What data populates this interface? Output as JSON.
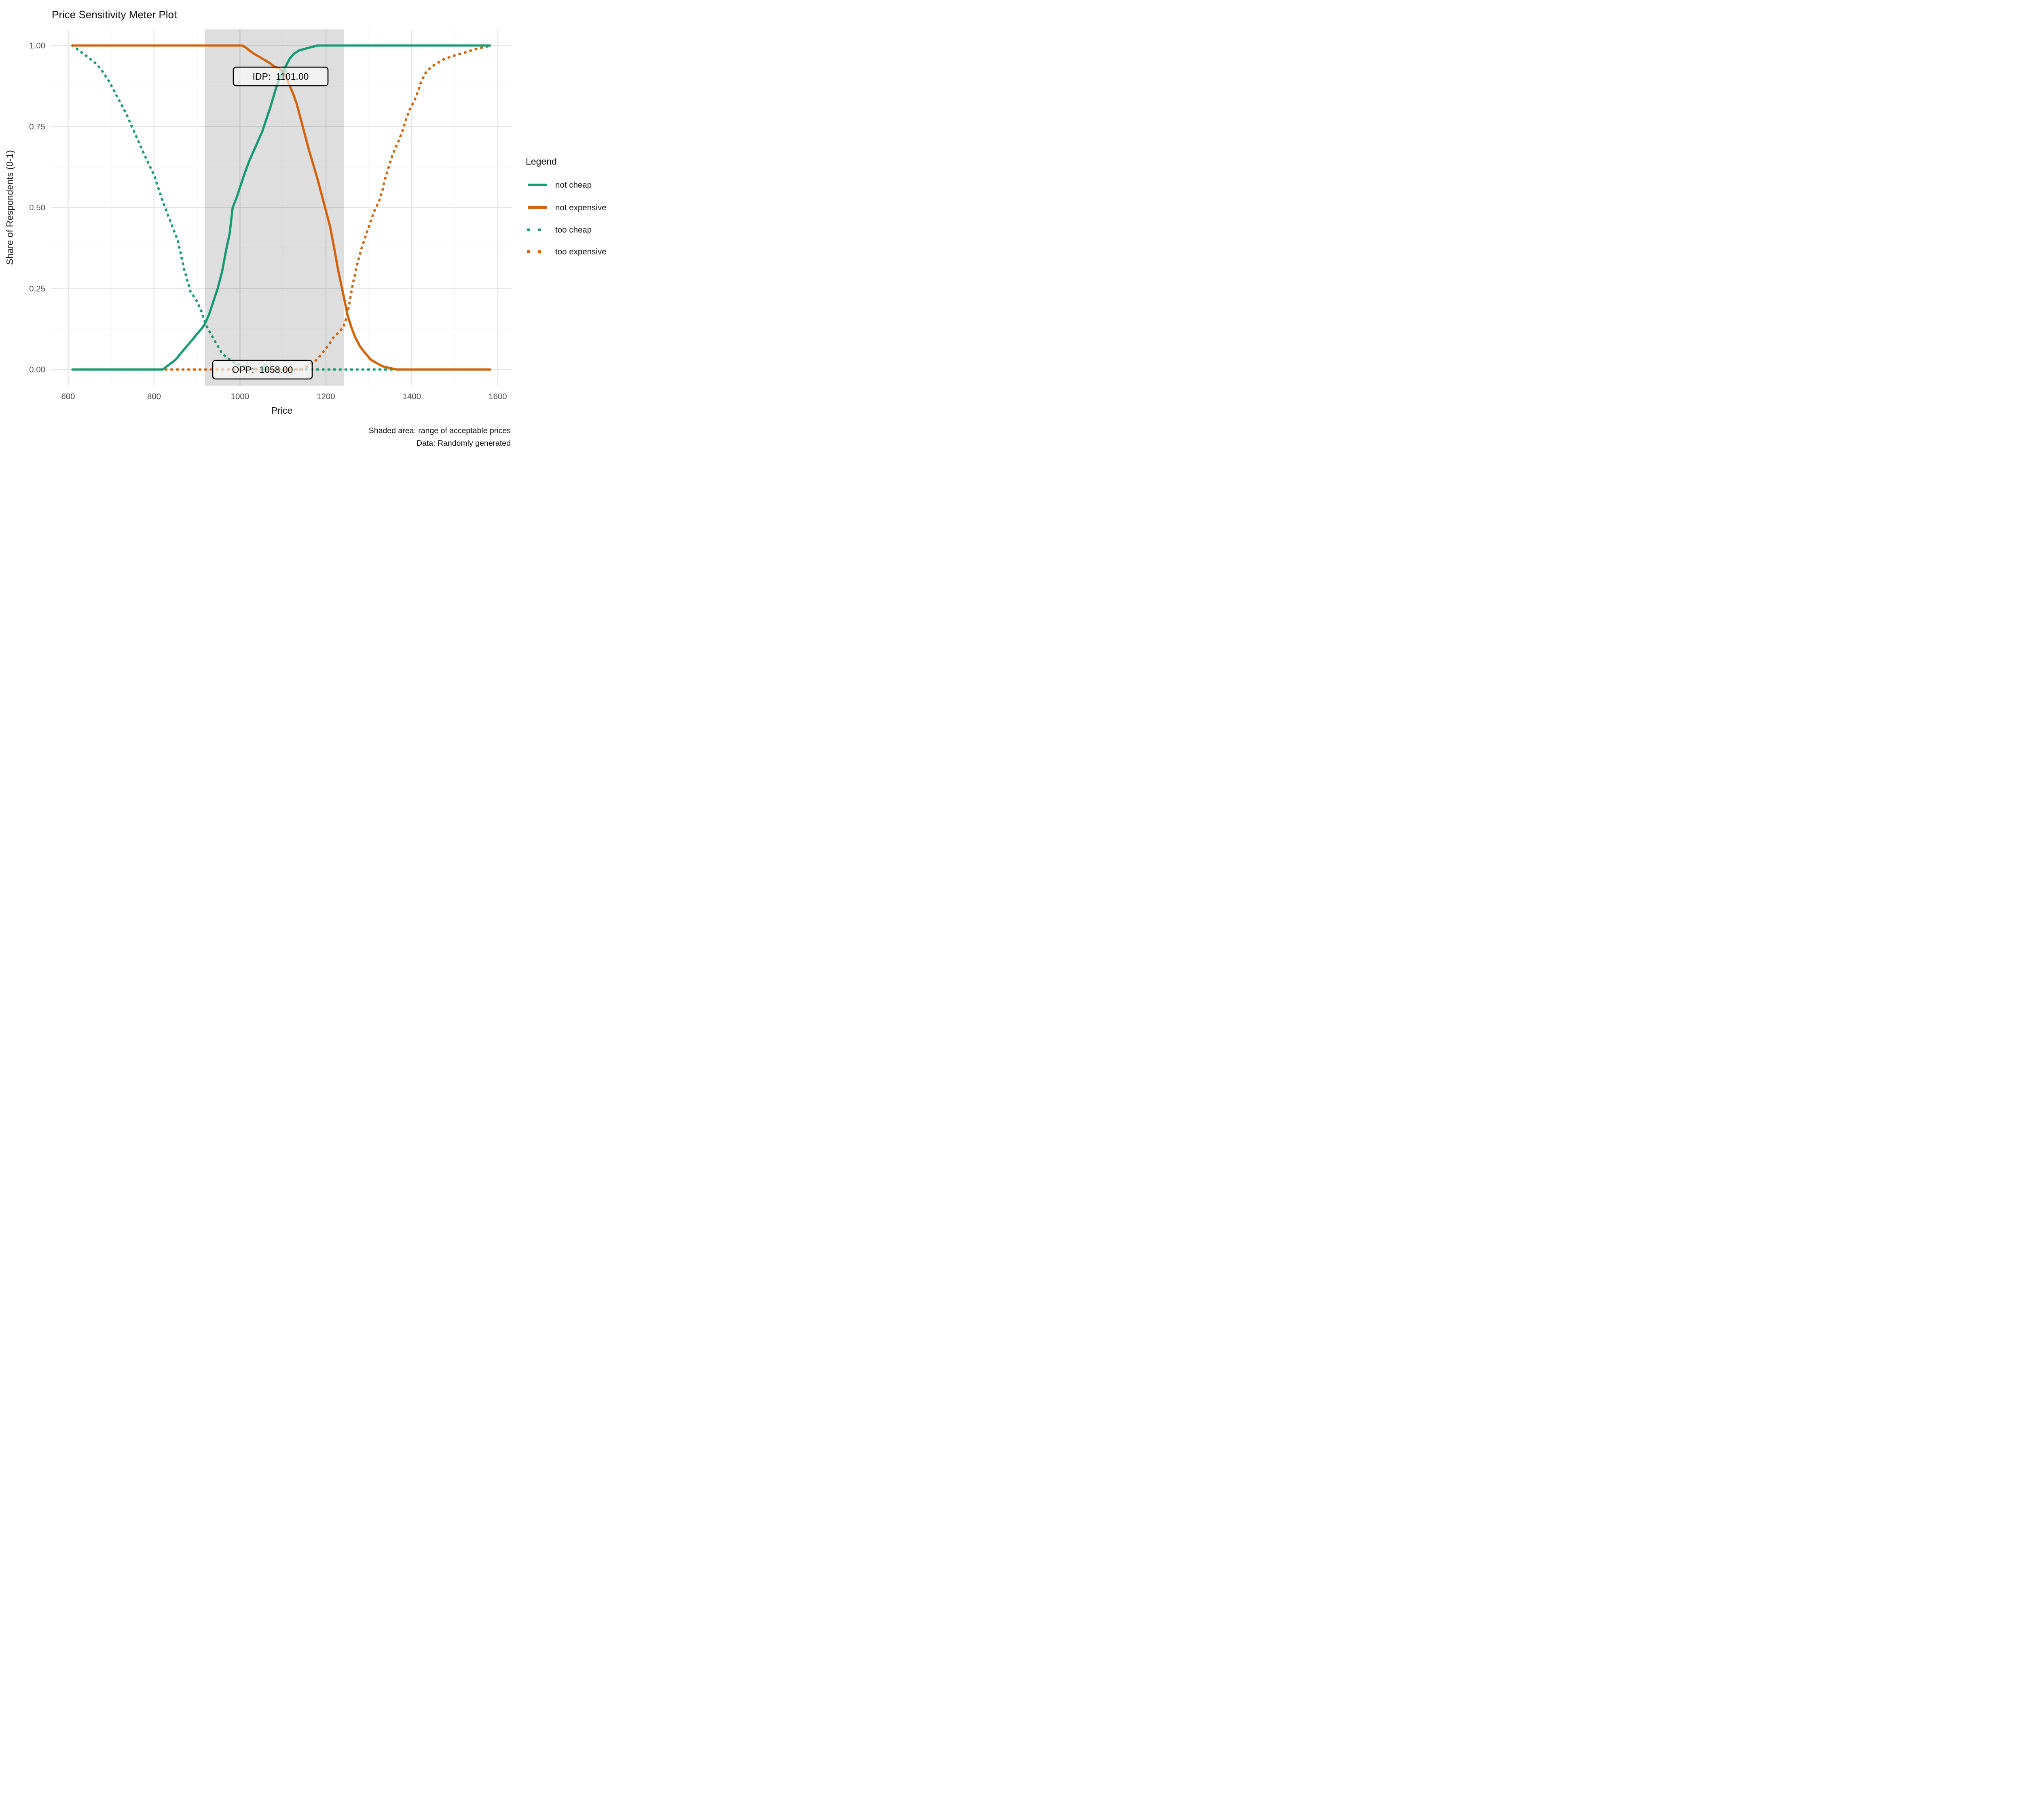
{
  "title": "Price Sensitivity Meter Plot",
  "axes": {
    "x": {
      "label": "Price",
      "tick_labels": [
        "600",
        "800",
        "1000",
        "1200",
        "1400",
        "1600"
      ]
    },
    "y": {
      "label": "Share of Respondents (0-1)",
      "tick_labels": [
        "0.00",
        "0.25",
        "0.50",
        "0.75",
        "1.00"
      ]
    }
  },
  "legend": {
    "title": "Legend",
    "items": [
      {
        "label": "not cheap",
        "color": "#169b72",
        "style": "solid"
      },
      {
        "label": "not expensive",
        "color": "#d4620a",
        "style": "solid"
      },
      {
        "label": "too cheap",
        "color": "#169b72",
        "style": "dotted"
      },
      {
        "label": "too expensive",
        "color": "#d4620a",
        "style": "dotted"
      }
    ]
  },
  "caption": {
    "line1": "Shaded area: range of acceptable prices",
    "line2": "Data: Randomly generated"
  },
  "colors": {
    "green": "#169b72",
    "orange": "#d4620a",
    "band": "rgba(0,0,0,0.13)",
    "grid_major": "#e6e6e6",
    "grid_minor": "#f2f2f2",
    "annotation_fill": "rgba(255,255,255,0.62)",
    "annotation_border": "#000000"
  },
  "chart_data": {
    "type": "line",
    "title": "Price Sensitivity Meter Plot",
    "xlabel": "Price",
    "ylabel": "Share of Respondents (0-1)",
    "xlim": [
      561,
      1634
    ],
    "ylim": [
      -0.05,
      1.05
    ],
    "x_ticks": [
      600,
      800,
      1000,
      1200,
      1400,
      1600
    ],
    "y_ticks": [
      {
        "value": 0.0,
        "label": "0.00"
      },
      {
        "value": 0.25,
        "label": "0.25"
      },
      {
        "value": 0.5,
        "label": "0.50"
      },
      {
        "value": 0.75,
        "label": "0.75"
      },
      {
        "value": 1.0,
        "label": "1.00"
      }
    ],
    "grid": "major+minor",
    "legend_position": "right",
    "series": [
      {
        "id": "too_cheap",
        "name": "too cheap",
        "color": "#169b72",
        "style": "dotted",
        "dash_offset": 0,
        "points": [
          [
            610,
            1.0
          ],
          [
            640,
            0.97
          ],
          [
            660,
            0.95
          ],
          [
            675,
            0.93
          ],
          [
            695,
            0.89
          ],
          [
            715,
            0.84
          ],
          [
            735,
            0.79
          ],
          [
            755,
            0.73
          ],
          [
            775,
            0.67
          ],
          [
            800,
            0.6
          ],
          [
            820,
            0.52
          ],
          [
            840,
            0.45
          ],
          [
            855,
            0.4
          ],
          [
            870,
            0.31
          ],
          [
            885,
            0.24
          ],
          [
            900,
            0.21
          ],
          [
            910,
            0.18
          ],
          [
            920,
            0.14
          ],
          [
            932,
            0.11
          ],
          [
            945,
            0.08
          ],
          [
            958,
            0.05
          ],
          [
            972,
            0.035
          ],
          [
            988,
            0.02
          ],
          [
            1005,
            0.012
          ],
          [
            1025,
            0.005
          ],
          [
            1045,
            0.0
          ],
          [
            1370,
            0.0
          ]
        ]
      },
      {
        "id": "too_expensive",
        "name": "too expensive",
        "color": "#d4620a",
        "style": "dotted",
        "dash_offset": 7,
        "points": [
          [
            610,
            0.0
          ],
          [
            1145,
            0.0
          ],
          [
            1158,
            0.01
          ],
          [
            1170,
            0.02
          ],
          [
            1182,
            0.035
          ],
          [
            1194,
            0.055
          ],
          [
            1206,
            0.075
          ],
          [
            1218,
            0.1
          ],
          [
            1230,
            0.115
          ],
          [
            1240,
            0.13
          ],
          [
            1248,
            0.16
          ],
          [
            1254,
            0.2
          ],
          [
            1262,
            0.26
          ],
          [
            1272,
            0.32
          ],
          [
            1282,
            0.37
          ],
          [
            1292,
            0.41
          ],
          [
            1302,
            0.45
          ],
          [
            1313,
            0.49
          ],
          [
            1324,
            0.52
          ],
          [
            1331,
            0.55
          ],
          [
            1338,
            0.59
          ],
          [
            1345,
            0.62
          ],
          [
            1352,
            0.65
          ],
          [
            1360,
            0.68
          ],
          [
            1371,
            0.71
          ],
          [
            1379,
            0.74
          ],
          [
            1386,
            0.77
          ],
          [
            1394,
            0.8
          ],
          [
            1406,
            0.83
          ],
          [
            1415,
            0.86
          ],
          [
            1422,
            0.89
          ],
          [
            1434,
            0.92
          ],
          [
            1452,
            0.94
          ],
          [
            1474,
            0.957
          ],
          [
            1496,
            0.968
          ],
          [
            1520,
            0.977
          ],
          [
            1546,
            0.988
          ],
          [
            1562,
            0.993
          ],
          [
            1576,
            0.997
          ],
          [
            1583,
            1.0
          ]
        ]
      },
      {
        "id": "not_cheap",
        "name": "not cheap",
        "color": "#169b72",
        "style": "solid",
        "dash_offset": 0,
        "points": [
          [
            610,
            0.0
          ],
          [
            820,
            0.0
          ],
          [
            835,
            0.015
          ],
          [
            850,
            0.03
          ],
          [
            862,
            0.05
          ],
          [
            875,
            0.07
          ],
          [
            888,
            0.09
          ],
          [
            900,
            0.11
          ],
          [
            910,
            0.125
          ],
          [
            918,
            0.14
          ],
          [
            928,
            0.17
          ],
          [
            938,
            0.21
          ],
          [
            948,
            0.25
          ],
          [
            958,
            0.3
          ],
          [
            968,
            0.37
          ],
          [
            976,
            0.42
          ],
          [
            983,
            0.5
          ],
          [
            992,
            0.53
          ],
          [
            1002,
            0.57
          ],
          [
            1012,
            0.61
          ],
          [
            1022,
            0.645
          ],
          [
            1032,
            0.675
          ],
          [
            1042,
            0.705
          ],
          [
            1052,
            0.735
          ],
          [
            1062,
            0.775
          ],
          [
            1072,
            0.815
          ],
          [
            1082,
            0.86
          ],
          [
            1092,
            0.9
          ],
          [
            1101,
            0.92
          ],
          [
            1108,
            0.94
          ],
          [
            1116,
            0.96
          ],
          [
            1126,
            0.975
          ],
          [
            1138,
            0.985
          ],
          [
            1152,
            0.99
          ],
          [
            1166,
            0.995
          ],
          [
            1180,
            1.0
          ],
          [
            1582,
            1.0
          ]
        ]
      },
      {
        "id": "not_expensive",
        "name": "not expensive",
        "color": "#d4620a",
        "style": "solid",
        "dash_offset": 0,
        "points": [
          [
            610,
            1.0
          ],
          [
            1005,
            1.0
          ],
          [
            1012,
            0.995
          ],
          [
            1022,
            0.985
          ],
          [
            1032,
            0.975
          ],
          [
            1045,
            0.965
          ],
          [
            1058,
            0.955
          ],
          [
            1070,
            0.945
          ],
          [
            1080,
            0.935
          ],
          [
            1090,
            0.93
          ],
          [
            1101,
            0.92
          ],
          [
            1108,
            0.9
          ],
          [
            1116,
            0.875
          ],
          [
            1124,
            0.85
          ],
          [
            1132,
            0.82
          ],
          [
            1140,
            0.78
          ],
          [
            1150,
            0.73
          ],
          [
            1160,
            0.68
          ],
          [
            1170,
            0.635
          ],
          [
            1180,
            0.59
          ],
          [
            1190,
            0.54
          ],
          [
            1200,
            0.49
          ],
          [
            1210,
            0.44
          ],
          [
            1220,
            0.37
          ],
          [
            1228,
            0.31
          ],
          [
            1236,
            0.26
          ],
          [
            1244,
            0.21
          ],
          [
            1250,
            0.17
          ],
          [
            1258,
            0.135
          ],
          [
            1268,
            0.1
          ],
          [
            1280,
            0.07
          ],
          [
            1292,
            0.05
          ],
          [
            1305,
            0.03
          ],
          [
            1318,
            0.02
          ],
          [
            1332,
            0.01
          ],
          [
            1348,
            0.005
          ],
          [
            1365,
            0.0
          ],
          [
            1582,
            0.0
          ]
        ]
      }
    ],
    "annotations": {
      "band": {
        "x_from": 918,
        "x_to": 1242,
        "meaning": "range of acceptable prices"
      },
      "idp": {
        "label": "IDP:  1101.00",
        "price": 1101,
        "share": 0.92,
        "marker": "diamond"
      },
      "opp": {
        "label": "OPP:  1058.00",
        "price": 1058,
        "share": 0.0,
        "marker": "triangle"
      }
    }
  }
}
